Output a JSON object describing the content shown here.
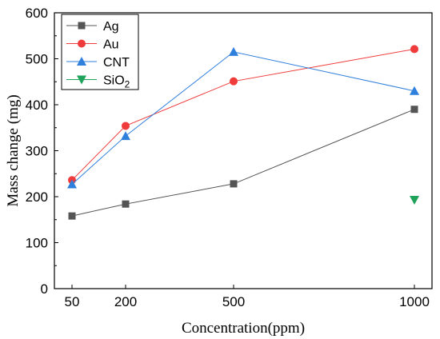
{
  "chart_data": {
    "type": "line",
    "xlabel": "Concentration(ppm)",
    "ylabel": "Mass change (mg)",
    "x_ticks": [
      50,
      200,
      500,
      1000
    ],
    "y_ticks": [
      0,
      100,
      200,
      300,
      400,
      500,
      600
    ],
    "xlim": [
      0,
      1050
    ],
    "ylim": [
      0,
      600
    ],
    "legend_position": "top-left",
    "series": [
      {
        "name": "Ag",
        "color": "#555555",
        "marker": "square",
        "points": [
          [
            50,
            158
          ],
          [
            200,
            184
          ],
          [
            500,
            228
          ],
          [
            1000,
            390
          ]
        ]
      },
      {
        "name": "Au",
        "color": "#ef3b3b",
        "marker": "circle",
        "points": [
          [
            50,
            236
          ],
          [
            200,
            354
          ],
          [
            500,
            451
          ],
          [
            1000,
            521
          ]
        ]
      },
      {
        "name": "CNT",
        "color": "#2f7fdc",
        "marker": "triangle-up",
        "points": [
          [
            50,
            227
          ],
          [
            200,
            332
          ],
          [
            500,
            515
          ],
          [
            1000,
            430
          ]
        ]
      },
      {
        "name": "SiO",
        "name_subscript": "2",
        "color": "#1fa35a",
        "marker": "triangle-down",
        "points": [
          [
            1000,
            193
          ]
        ]
      }
    ]
  }
}
